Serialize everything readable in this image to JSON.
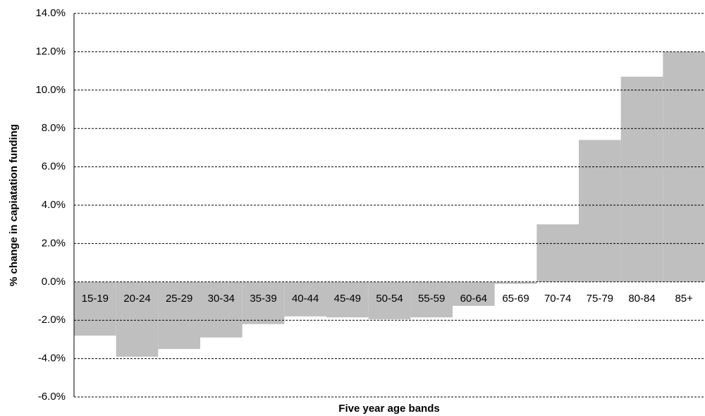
{
  "chart_data": {
    "type": "bar",
    "x_label": "Five year age bands",
    "y_label": "% change in capiatation funding",
    "categories": [
      "15-19",
      "20-24",
      "25-29",
      "30-34",
      "35-39",
      "40-44",
      "45-49",
      "50-54",
      "55-59",
      "60-64",
      "65-69",
      "70-74",
      "75-79",
      "80-84",
      "85+"
    ],
    "values": [
      -2.8,
      -3.9,
      -3.5,
      -2.9,
      -2.2,
      -1.8,
      -1.85,
      -1.95,
      -1.85,
      -1.25,
      -0.1,
      3.0,
      7.4,
      10.7,
      12.0
    ],
    "color": "#bfbfbf",
    "ylim": [
      -6,
      14
    ],
    "yticks": [
      {
        "value": -6,
        "label": "-6.0%"
      },
      {
        "value": -4,
        "label": "-4.0%"
      },
      {
        "value": -2,
        "label": "-2.0%"
      },
      {
        "value": 0,
        "label": "0.0%"
      },
      {
        "value": 2,
        "label": "2.0%"
      },
      {
        "value": 4,
        "label": "4.0%"
      },
      {
        "value": 6,
        "label": "6.0%"
      },
      {
        "value": 8,
        "label": "8.0%"
      },
      {
        "value": 10,
        "label": "10.0%"
      },
      {
        "value": 12,
        "label": "12.0%"
      },
      {
        "value": 14,
        "label": "14.0%"
      }
    ],
    "grid": true
  }
}
